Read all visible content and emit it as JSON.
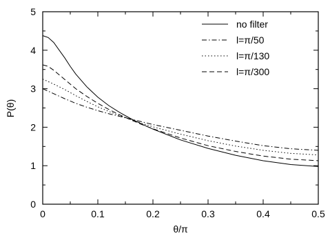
{
  "chart_data": {
    "type": "line",
    "xlabel": "θ/π",
    "ylabel": "P(θ)",
    "xlim": [
      0,
      0.5
    ],
    "ylim": [
      0,
      5
    ],
    "x_ticks": [
      "0",
      "0.1",
      "0.2",
      "0.3",
      "0.4",
      "0.5"
    ],
    "y_ticks": [
      "0",
      "1",
      "2",
      "3",
      "4",
      "5"
    ],
    "grid": false,
    "legend_position": "top-right",
    "series": [
      {
        "name": "no filter",
        "dash": "solid",
        "x": [
          0,
          0.01,
          0.02,
          0.03,
          0.04,
          0.05,
          0.06,
          0.08,
          0.1,
          0.12,
          0.14,
          0.16,
          0.18,
          0.2,
          0.25,
          0.3,
          0.35,
          0.4,
          0.45,
          0.5
        ],
        "y": [
          4.38,
          4.33,
          4.2,
          4.0,
          3.8,
          3.58,
          3.38,
          3.05,
          2.78,
          2.56,
          2.38,
          2.22,
          2.08,
          1.95,
          1.67,
          1.45,
          1.27,
          1.13,
          1.03,
          0.98
        ]
      },
      {
        "name": "l=π/50",
        "dash": "dashdot",
        "x": [
          0,
          0.02,
          0.04,
          0.06,
          0.08,
          0.1,
          0.12,
          0.14,
          0.16,
          0.18,
          0.2,
          0.25,
          0.3,
          0.35,
          0.4,
          0.45,
          0.5
        ],
        "y": [
          3.0,
          2.87,
          2.74,
          2.62,
          2.52,
          2.43,
          2.35,
          2.28,
          2.21,
          2.14,
          2.07,
          1.92,
          1.77,
          1.64,
          1.52,
          1.44,
          1.4
        ]
      },
      {
        "name": "l=π/130",
        "dash": "dotted",
        "x": [
          0,
          0.02,
          0.04,
          0.06,
          0.08,
          0.1,
          0.12,
          0.14,
          0.16,
          0.18,
          0.2,
          0.25,
          0.3,
          0.35,
          0.4,
          0.45,
          0.5
        ],
        "y": [
          3.25,
          3.12,
          2.98,
          2.82,
          2.67,
          2.53,
          2.41,
          2.3,
          2.2,
          2.1,
          2.01,
          1.82,
          1.65,
          1.51,
          1.4,
          1.32,
          1.28
        ]
      },
      {
        "name": "l=π/300",
        "dash": "dashed",
        "x": [
          0,
          0.01,
          0.02,
          0.04,
          0.06,
          0.08,
          0.1,
          0.12,
          0.14,
          0.16,
          0.18,
          0.2,
          0.25,
          0.3,
          0.35,
          0.4,
          0.45,
          0.5
        ],
        "y": [
          3.62,
          3.58,
          3.48,
          3.24,
          3.0,
          2.8,
          2.62,
          2.46,
          2.32,
          2.19,
          2.07,
          1.96,
          1.72,
          1.52,
          1.37,
          1.25,
          1.17,
          1.13
        ]
      }
    ]
  }
}
